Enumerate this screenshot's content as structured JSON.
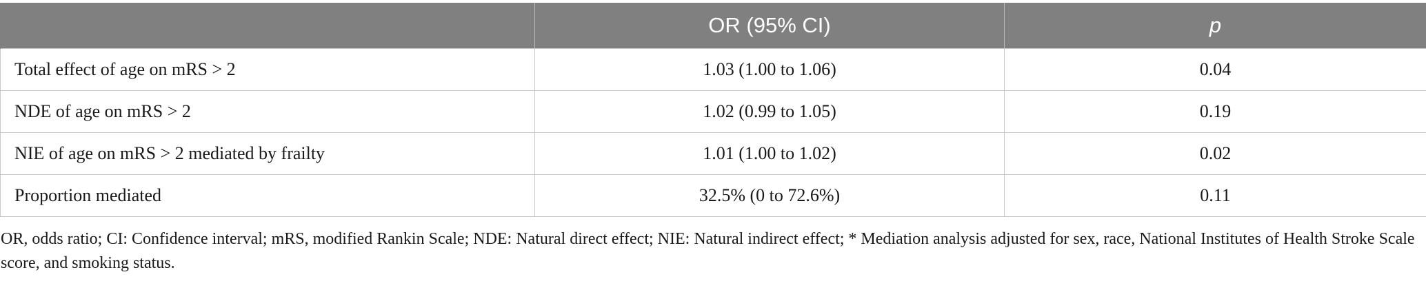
{
  "table": {
    "headers": [
      "",
      "OR (95% CI)",
      "p"
    ],
    "rows": [
      {
        "label": "Total effect of age on mRS > 2",
        "or_ci": "1.03 (1.00 to 1.06)",
        "p": "0.04"
      },
      {
        "label": "NDE of age on mRS > 2",
        "or_ci": "1.02 (0.99 to 1.05)",
        "p": "0.19"
      },
      {
        "label": "NIE of age on mRS > 2 mediated by frailty",
        "or_ci": "1.01 (1.00 to 1.02)",
        "p": "0.02"
      },
      {
        "label": "Proportion mediated",
        "or_ci": "32.5% (0 to 72.6%)",
        "p": "0.11"
      }
    ]
  },
  "footnote": "OR, odds ratio; CI: Confidence interval; mRS, modified Rankin Scale; NDE: Natural direct effect; NIE: Natural indirect effect; * Mediation analysis adjusted for sex, race, National Institutes of Health Stroke Scale score, and smoking status.",
  "colors": {
    "header_bg": "#808080",
    "header_text": "#ffffff",
    "grid": "#c8c8c8"
  }
}
